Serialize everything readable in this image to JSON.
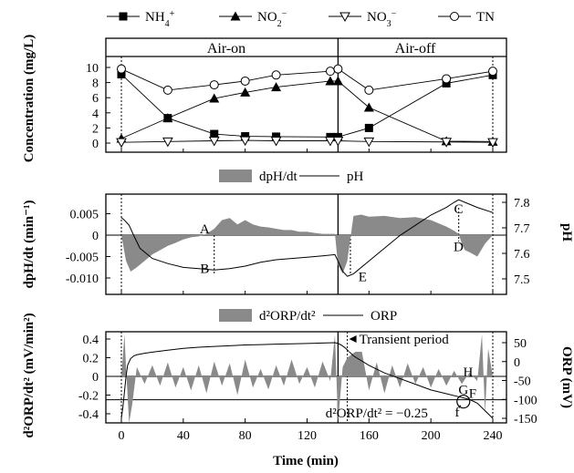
{
  "chart_data": [
    {
      "type": "line",
      "panel": "top",
      "segments": [
        "Air-on",
        "Air-off"
      ],
      "ylabel": "Concentration (mg/L)",
      "ylim": [
        0,
        10
      ],
      "yticks": [
        0,
        2,
        4,
        6,
        8,
        10
      ],
      "xlim": [
        0,
        240
      ],
      "legend_position": "top",
      "series": [
        {
          "name": "NH4+",
          "label_base": "NH",
          "label_sub": "4",
          "label_sup": "+",
          "marker": "square-filled",
          "x": [
            0,
            30,
            60,
            80,
            100,
            135,
            140,
            160,
            210,
            240
          ],
          "y": [
            9.1,
            3.3,
            1.2,
            0.9,
            0.85,
            0.8,
            0.8,
            2.0,
            7.9,
            9.0
          ]
        },
        {
          "name": "NO2-",
          "label_base": "NO",
          "label_sub": "2",
          "label_sup": "−",
          "marker": "triangle-filled",
          "x": [
            0,
            30,
            60,
            80,
            100,
            135,
            140,
            160,
            210,
            240
          ],
          "y": [
            0.6,
            3.3,
            5.9,
            6.7,
            7.4,
            8.2,
            8.2,
            4.7,
            0.25,
            0.2
          ]
        },
        {
          "name": "NO3-",
          "label_base": "NO",
          "label_sub": "3",
          "label_sup": "−",
          "marker": "triangle-open-down",
          "x": [
            0,
            30,
            60,
            80,
            100,
            135,
            140,
            160,
            210,
            240
          ],
          "y": [
            0.1,
            0.2,
            0.3,
            0.35,
            0.3,
            0.3,
            0.3,
            0.2,
            0.15,
            0.1
          ]
        },
        {
          "name": "TN",
          "label_base": "TN",
          "label_sub": "",
          "label_sup": "",
          "marker": "circle-open",
          "x": [
            0,
            30,
            60,
            80,
            100,
            135,
            140,
            160,
            210,
            240
          ],
          "y": [
            9.8,
            7.0,
            7.7,
            8.2,
            9.0,
            9.5,
            9.8,
            7.0,
            8.5,
            9.5
          ]
        }
      ]
    },
    {
      "type": "area",
      "panel": "middle",
      "legend": {
        "area": "dpH/dt",
        "line": "pH"
      },
      "ylabel_left": "dpH/dt (min⁻¹)",
      "ylabel_right": "pH",
      "ylim_left": [
        -0.011,
        0.007
      ],
      "yticks_left": [
        -0.01,
        -0.005,
        0,
        0.005
      ],
      "yticklabels_left": [
        "-0.010",
        "-0.005",
        "0",
        "0.005"
      ],
      "ylim_right": [
        7.46,
        7.85
      ],
      "yticks_right": [
        7.5,
        7.6,
        7.7,
        7.8
      ],
      "xlim": [
        0,
        240
      ],
      "dpH_dt": {
        "x": [
          0,
          3,
          6,
          10,
          15,
          20,
          25,
          30,
          35,
          40,
          45,
          50,
          55,
          60,
          65,
          70,
          75,
          80,
          85,
          90,
          95,
          100,
          105,
          110,
          115,
          120,
          125,
          130,
          135,
          138,
          140,
          143,
          146,
          150,
          155,
          160,
          170,
          180,
          190,
          200,
          210,
          215,
          218,
          220,
          222,
          225,
          230,
          235,
          240
        ],
        "y": [
          0.0,
          -0.006,
          -0.0085,
          -0.0075,
          -0.006,
          -0.0045,
          -0.0035,
          -0.0025,
          -0.0018,
          -0.001,
          -0.0005,
          -0.0003,
          0.0003,
          0.0015,
          0.0035,
          0.004,
          0.0025,
          0.0035,
          0.0025,
          0.002,
          0.0018,
          0.0015,
          0.0012,
          0.0012,
          0.0008,
          0.0008,
          0.0005,
          0.0003,
          0.0003,
          0.0003,
          -0.007,
          -0.009,
          -0.006,
          0.0045,
          0.0048,
          0.0043,
          0.0045,
          0.004,
          0.0042,
          0.0035,
          0.002,
          0.001,
          0.0003,
          -0.002,
          -0.0035,
          -0.004,
          -0.005,
          -0.002,
          0.0
        ]
      },
      "pH": {
        "x": [
          0,
          2,
          5,
          8,
          12,
          20,
          30,
          40,
          50,
          60,
          70,
          80,
          90,
          100,
          110,
          120,
          130,
          138,
          140,
          143,
          146,
          150,
          160,
          170,
          180,
          190,
          200,
          210,
          215,
          218,
          222,
          230,
          240
        ],
        "y": [
          7.74,
          7.73,
          7.71,
          7.67,
          7.62,
          7.58,
          7.56,
          7.545,
          7.54,
          7.535,
          7.54,
          7.55,
          7.565,
          7.575,
          7.58,
          7.585,
          7.59,
          7.595,
          7.57,
          7.53,
          7.51,
          7.52,
          7.57,
          7.62,
          7.67,
          7.71,
          7.75,
          7.78,
          7.8,
          7.81,
          7.8,
          7.78,
          7.76
        ]
      },
      "annotations": [
        {
          "text": "A",
          "x": 58,
          "y_left": 0.0015
        },
        {
          "text": "B",
          "x": 58,
          "y_left": -0.0078
        },
        {
          "text": "C",
          "x": 222,
          "y_left": 0.0062
        },
        {
          "text": "D",
          "x": 222,
          "y_left": -0.0027
        },
        {
          "text": "E",
          "x": 160,
          "y_left": -0.0097
        }
      ]
    },
    {
      "type": "area",
      "panel": "bottom",
      "legend": {
        "area": "d²ORP/dt²",
        "line": "ORP"
      },
      "ylabel_left": "d²ORP/dt² (mV/min²)",
      "ylabel_right": "ORP (mV)",
      "xlabel": "Time (min)",
      "xlim": [
        -6,
        244
      ],
      "xticks": [
        0,
        40,
        80,
        120,
        160,
        200,
        240
      ],
      "ylim_left": [
        -0.5,
        0.45
      ],
      "yticks_left": [
        -0.4,
        -0.2,
        0,
        0.2,
        0.4
      ],
      "yticklabels_left": [
        "-0.4",
        "-0.2",
        "0",
        "0.2",
        "0.4"
      ],
      "ylim_right": [
        -160,
        65
      ],
      "yticks_right": [
        -150,
        -100,
        -50,
        0,
        50
      ],
      "yticklabels_right": [
        "-150",
        "-100",
        "-50",
        "0",
        "50"
      ],
      "d2ORP_dt2": {
        "x": [
          0,
          2,
          3,
          5,
          7,
          10,
          15,
          20,
          25,
          30,
          35,
          40,
          45,
          50,
          55,
          60,
          65,
          70,
          75,
          80,
          85,
          90,
          95,
          100,
          105,
          110,
          115,
          120,
          125,
          130,
          135,
          138,
          140,
          143,
          146,
          150,
          155,
          160,
          165,
          170,
          175,
          180,
          185,
          190,
          195,
          200,
          205,
          210,
          215,
          220,
          225,
          230,
          233,
          235,
          237,
          240
        ],
        "y": [
          0.0,
          0.45,
          0.1,
          -0.5,
          -0.3,
          0.1,
          -0.08,
          0.12,
          -0.1,
          0.15,
          -0.12,
          0.1,
          -0.15,
          0.12,
          -0.18,
          0.16,
          -0.1,
          0.14,
          -0.2,
          0.18,
          -0.12,
          0.08,
          -0.14,
          0.12,
          -0.1,
          0.18,
          -0.08,
          0.1,
          -0.12,
          0.16,
          -0.05,
          0.45,
          -0.5,
          0.1,
          0.2,
          0.25,
          0.3,
          -0.15,
          0.15,
          -0.18,
          0.12,
          -0.12,
          0.14,
          -0.08,
          0.1,
          -0.12,
          0.08,
          -0.1,
          0.06,
          -0.08,
          0.04,
          -0.05,
          0.45,
          -0.4,
          0.3,
          0.0
        ]
      },
      "ORP": {
        "x": [
          0,
          1,
          2,
          3,
          4,
          6,
          8,
          10,
          15,
          20,
          30,
          40,
          50,
          60,
          70,
          80,
          90,
          100,
          110,
          120,
          130,
          138,
          140,
          142,
          145,
          150,
          160,
          170,
          180,
          190,
          200,
          210,
          220,
          225,
          230,
          240
        ],
        "y": [
          -150,
          -120,
          -80,
          -40,
          -10,
          8,
          15,
          18,
          22,
          25,
          30,
          35,
          38,
          40,
          42,
          44,
          45,
          46,
          47,
          48,
          49,
          50,
          48,
          44,
          35,
          15,
          -10,
          -30,
          -45,
          -60,
          -75,
          -85,
          -95,
          -100,
          -110,
          -150
        ]
      },
      "threshold": {
        "value": -0.25,
        "label": "d²ORP/dt² = −0.25"
      },
      "annotations": [
        {
          "text": "Transient period",
          "x": 146,
          "y_left": 0.4
        },
        {
          "text": "H",
          "x": 224,
          "y_left": 0.05
        },
        {
          "text": "G",
          "x": 221,
          "y_left": -0.14
        },
        {
          "text": "F",
          "x": 227,
          "y_left": -0.18
        },
        {
          "text": "f",
          "x": 217,
          "y_left": -0.38
        }
      ]
    }
  ]
}
